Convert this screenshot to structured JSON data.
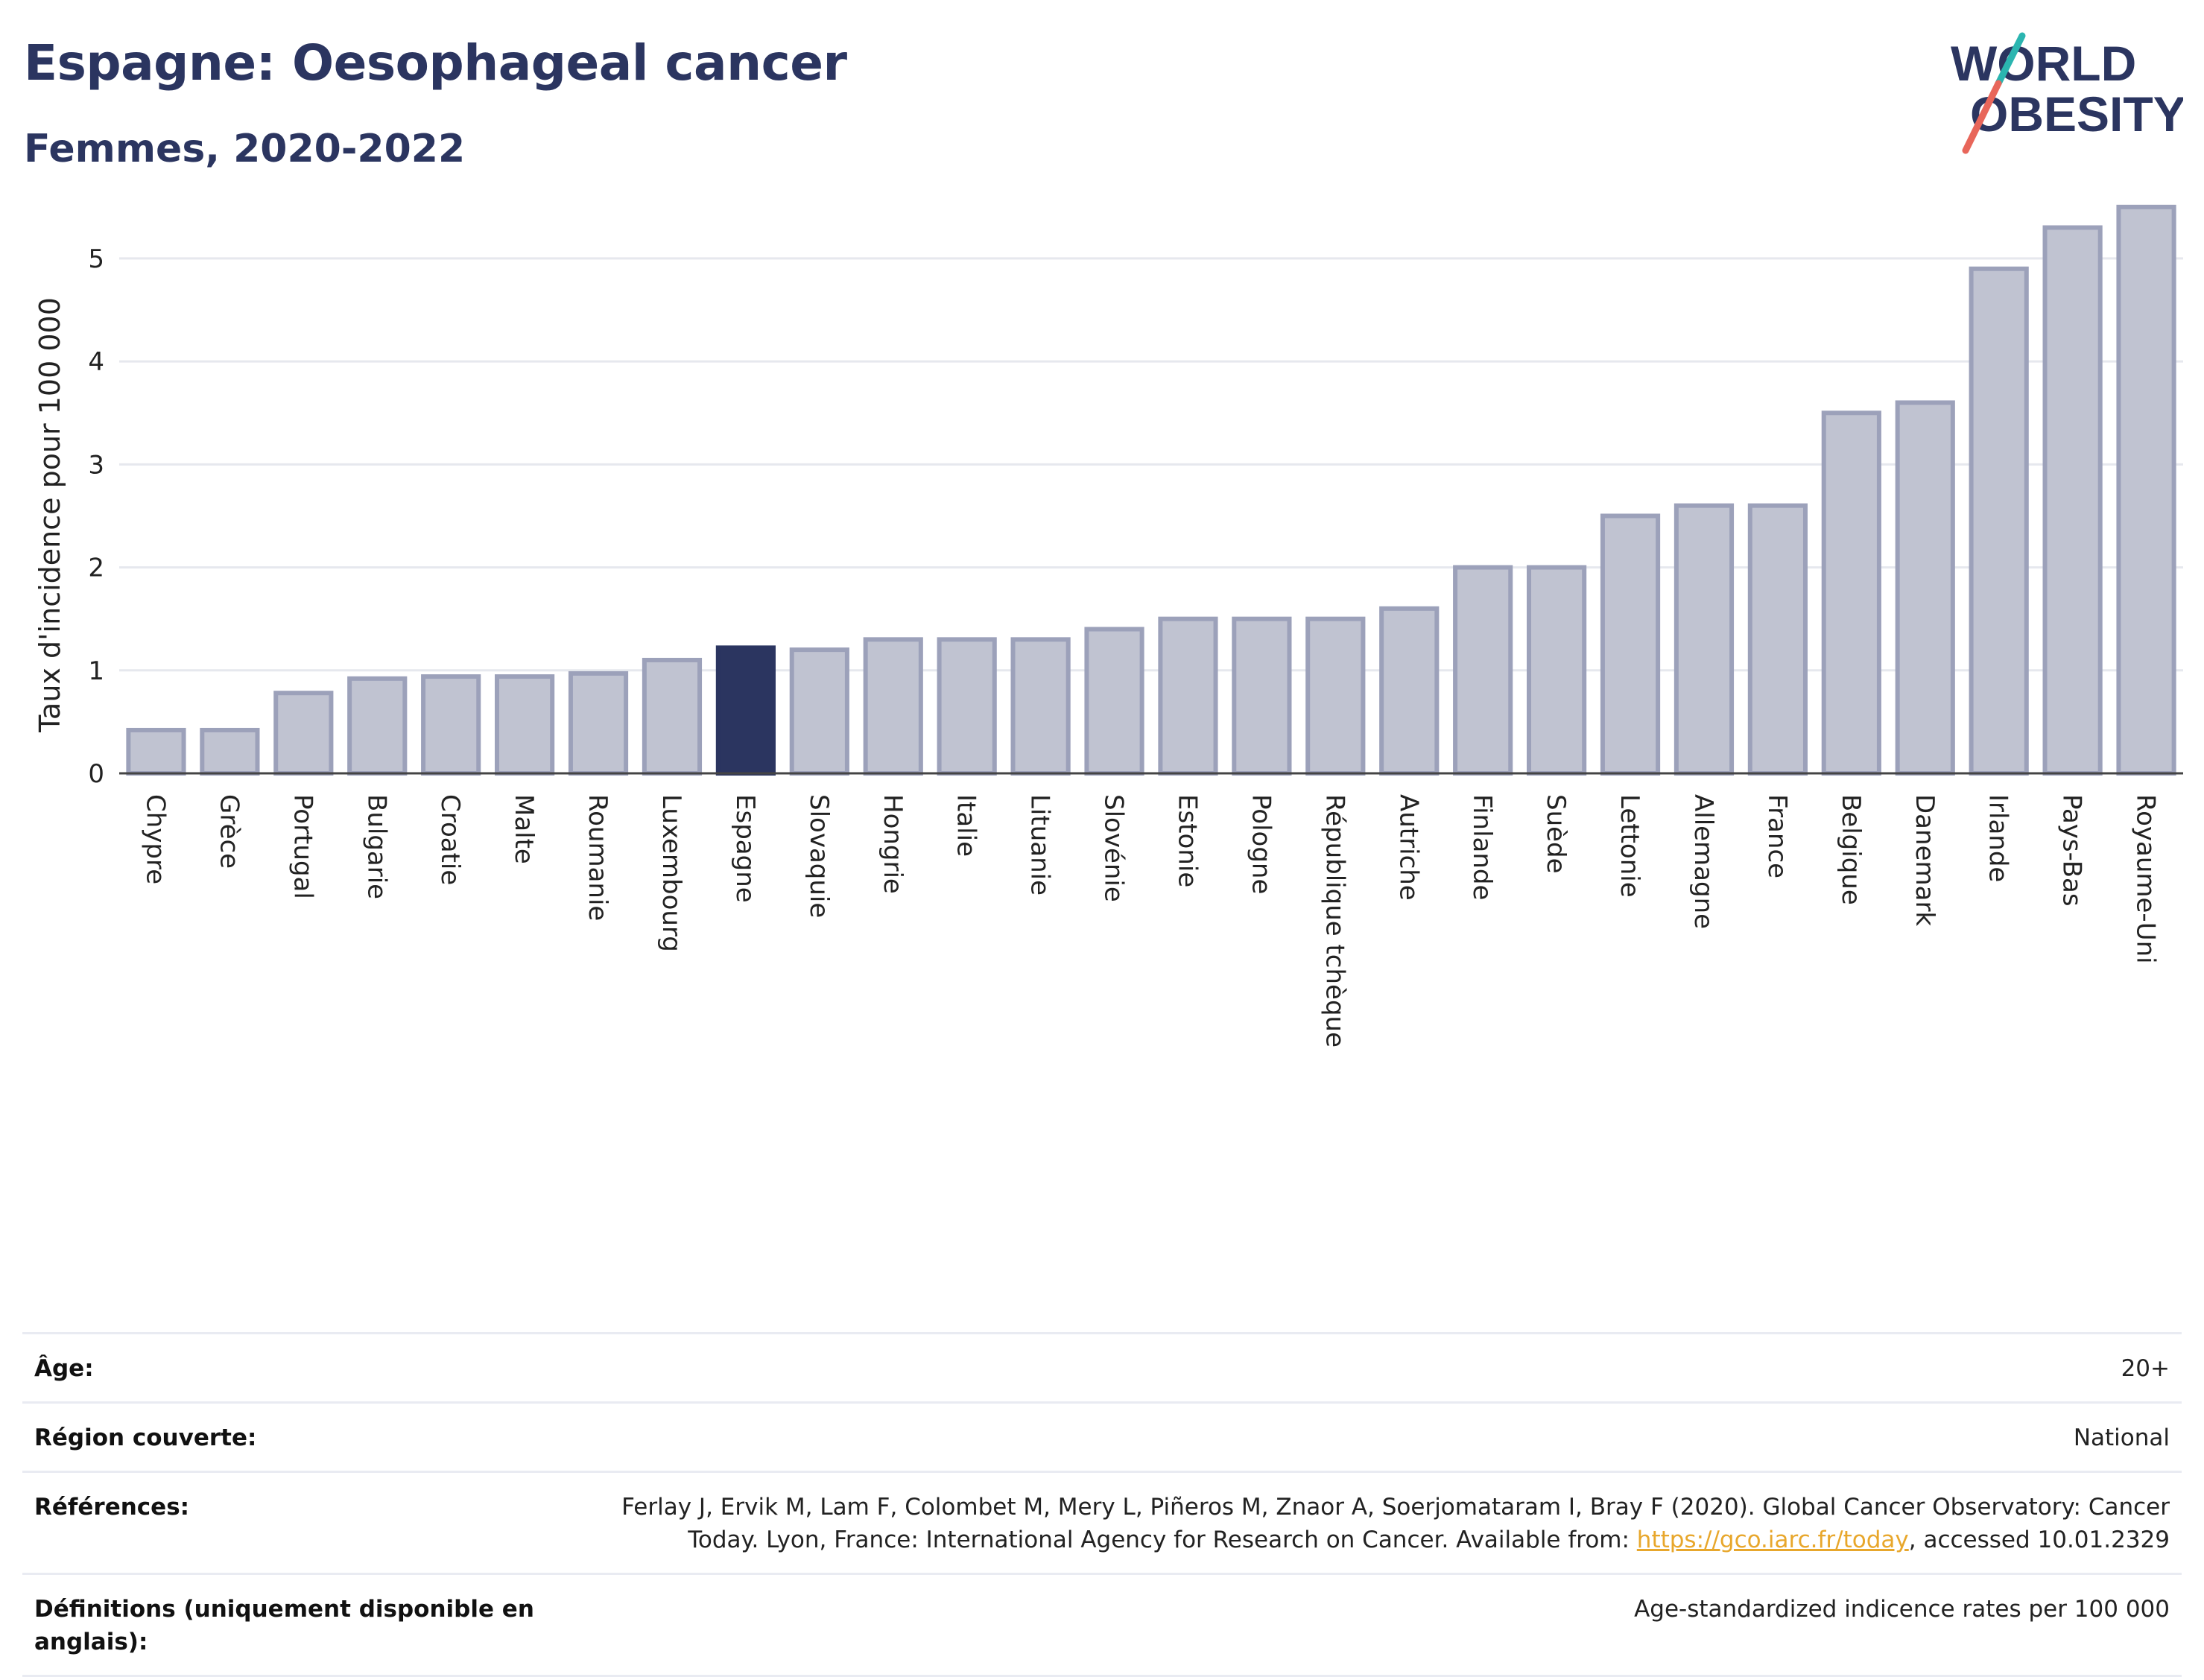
{
  "header": {
    "title": "Espagne: Oesophageal cancer",
    "subtitle": "Femmes, 2020-2022"
  },
  "logo": {
    "line1": "WORLD",
    "line2": "OBESITY"
  },
  "colors": {
    "highlight": "#2b3560",
    "bar_fill": "#c0c3d1",
    "bar_stroke": "#9ca1ba",
    "text_dark": "#2b3560",
    "link": "#e8a72c",
    "logo_teal": "#2bb5b0",
    "logo_red": "#e8665a"
  },
  "chart_data": {
    "type": "bar",
    "title": "Espagne: Oesophageal cancer",
    "subtitle": "Femmes, 2020-2022",
    "ylabel": "Taux d'incidence pour 100 000",
    "xlabel": "",
    "ylim": [
      0,
      5.6
    ],
    "yticks": [
      0,
      1,
      2,
      3,
      4,
      5
    ],
    "grid": true,
    "highlight": "Espagne",
    "categories": [
      "Chypre",
      "Grèce",
      "Portugal",
      "Bulgarie",
      "Croatie",
      "Malte",
      "Roumanie",
      "Luxembourg",
      "Espagne",
      "Slovaquie",
      "Hongrie",
      "Italie",
      "Lituanie",
      "Slovénie",
      "Estonie",
      "Pologne",
      "République tchèque",
      "Autriche",
      "Finlande",
      "Suède",
      "Lettonie",
      "Allemagne",
      "France",
      "Belgique",
      "Danemark",
      "Irlande",
      "Pays-Bas",
      "Royaume-Uni"
    ],
    "values": [
      0.42,
      0.42,
      0.78,
      0.92,
      0.94,
      0.94,
      0.97,
      1.1,
      1.22,
      1.2,
      1.3,
      1.3,
      1.3,
      1.4,
      1.5,
      1.5,
      1.5,
      1.6,
      2.0,
      2.0,
      2.5,
      2.6,
      2.6,
      3.5,
      3.6,
      4.9,
      5.3,
      5.5
    ]
  },
  "meta": {
    "age_label": "Âge:",
    "age_value": "20+",
    "region_label": "Région couverte:",
    "region_value": "National",
    "refs_label": "Références:",
    "refs_line1": "Ferlay J, Ervik M, Lam F, Colombet M, Mery L, Piñeros M, Znaor A, Soerjomataram I, Bray F (2020). Global Cancer Observatory: Cancer",
    "refs_line2_pre": "Today. Lyon, France: International Agency for Research on Cancer. Available from: ",
    "refs_link": "https://gco.iarc.fr/today",
    "refs_line2_post": ", accessed 10.01.2329",
    "defs_label": "Définitions (uniquement disponible en anglais):",
    "defs_value": "Age-standardized indicence rates per 100 000"
  }
}
